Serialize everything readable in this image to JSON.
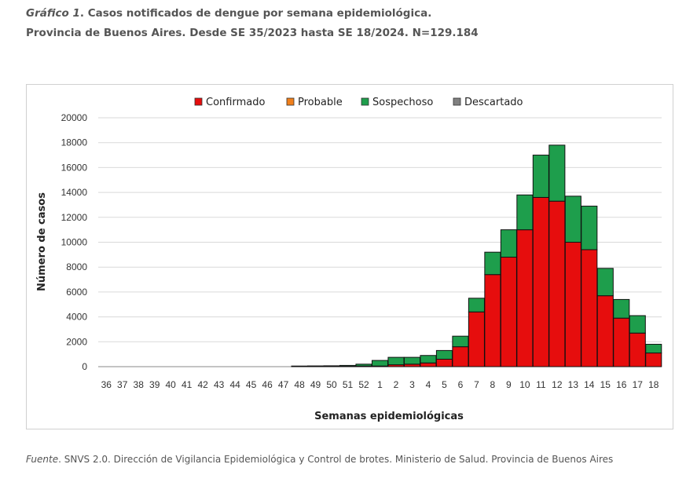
{
  "title": {
    "prefix": "Gráfico 1",
    "line1": ". Casos notificados de dengue por semana epidemiológica.",
    "line2": "Provincia de Buenos Aires. Desde SE 35/2023 hasta SE 18/2024. N=129.184"
  },
  "source": {
    "prefix": "Fuente",
    "text": ". SNVS 2.0. Dirección de Vigilancia Epidemiológica y Control de brotes. Ministerio de Salud. Provincia de Buenos Aires"
  },
  "chart_data": {
    "type": "bar",
    "stacked": true,
    "xlabel": "Semanas epidemiológicas",
    "ylabel": "Número de casos",
    "ylim": [
      0,
      20000
    ],
    "yticks": [
      0,
      2000,
      4000,
      6000,
      8000,
      10000,
      12000,
      14000,
      16000,
      18000,
      20000
    ],
    "legend_position": "top",
    "categories": [
      "36",
      "37",
      "38",
      "39",
      "40",
      "41",
      "42",
      "43",
      "44",
      "45",
      "46",
      "47",
      "48",
      "49",
      "50",
      "51",
      "52",
      "1",
      "2",
      "3",
      "4",
      "5",
      "6",
      "7",
      "8",
      "9",
      "10",
      "11",
      "12",
      "13",
      "14",
      "15",
      "16",
      "17",
      "18"
    ],
    "series": [
      {
        "name": "Confirmado",
        "color": "#e60d0d",
        "values": [
          0,
          0,
          0,
          0,
          0,
          0,
          0,
          0,
          0,
          0,
          0,
          0,
          20,
          20,
          20,
          30,
          50,
          50,
          150,
          200,
          300,
          600,
          1600,
          4400,
          7400,
          8800,
          11000,
          13600,
          13300,
          10000,
          9400,
          5700,
          3900,
          2700,
          1100
        ]
      },
      {
        "name": "Probable",
        "color": "#f07f1b",
        "values": [
          0,
          0,
          0,
          0,
          0,
          0,
          0,
          0,
          0,
          0,
          0,
          0,
          0,
          0,
          0,
          0,
          0,
          0,
          0,
          0,
          0,
          0,
          0,
          0,
          0,
          0,
          0,
          0,
          0,
          0,
          0,
          0,
          0,
          0,
          0
        ]
      },
      {
        "name": "Sospechoso",
        "color": "#1e9e4c",
        "values": [
          0,
          0,
          0,
          0,
          0,
          0,
          0,
          0,
          0,
          0,
          0,
          0,
          30,
          40,
          50,
          70,
          150,
          450,
          600,
          550,
          600,
          700,
          850,
          1100,
          1800,
          2200,
          2800,
          3400,
          4500,
          3700,
          3500,
          2200,
          1500,
          1400,
          700
        ]
      },
      {
        "name": "Descartado",
        "color": "#808080",
        "values": [
          0,
          0,
          0,
          0,
          0,
          0,
          0,
          0,
          0,
          0,
          0,
          0,
          0,
          0,
          0,
          0,
          0,
          0,
          0,
          0,
          0,
          0,
          0,
          0,
          0,
          0,
          0,
          0,
          0,
          0,
          0,
          0,
          0,
          0,
          0
        ]
      }
    ]
  }
}
